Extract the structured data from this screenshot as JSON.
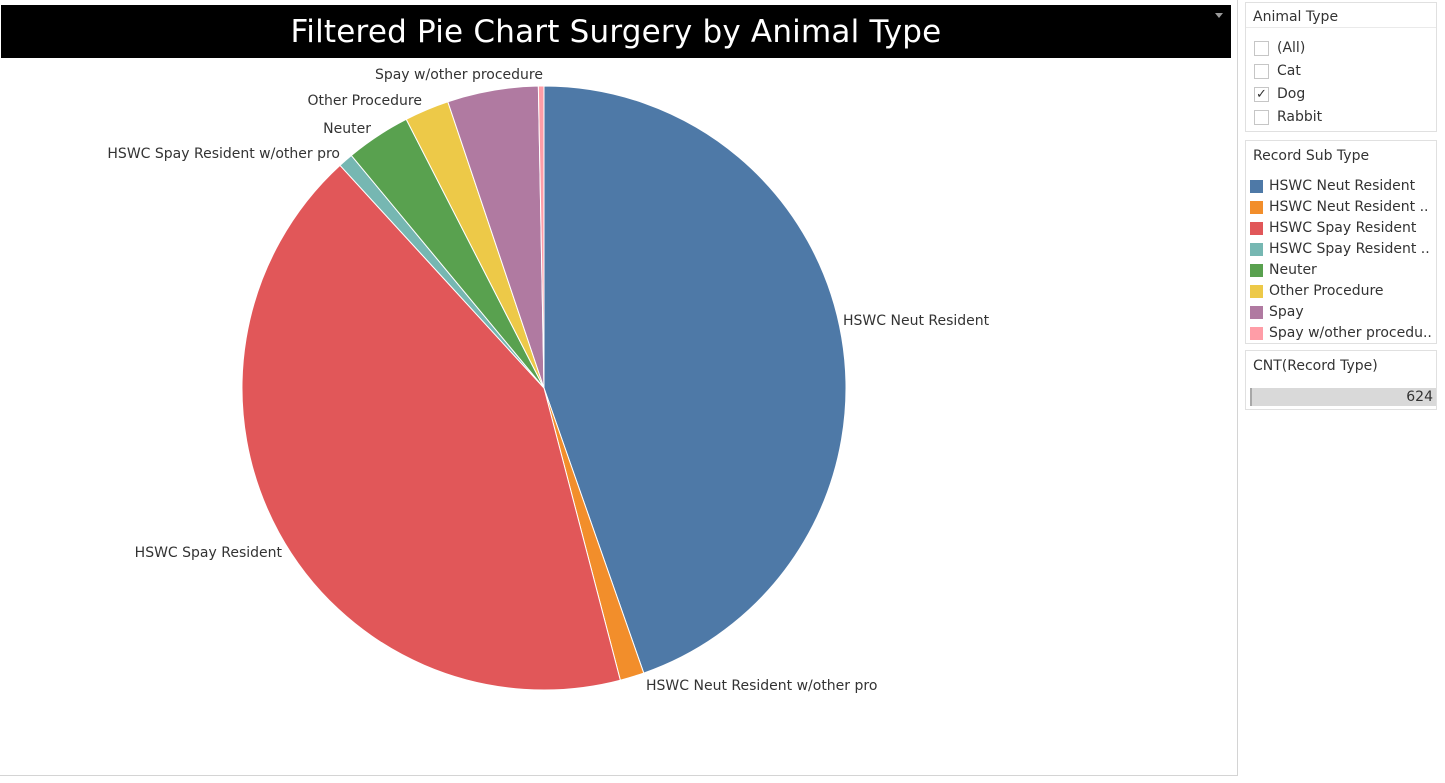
{
  "title": "Filtered Pie Chart Surgery by Animal Type",
  "chart_data": {
    "type": "pie",
    "title": "Filtered Pie Chart Surgery by Animal Type",
    "slices": [
      {
        "label": "HSWC Neut Resident",
        "value": 45.0,
        "color": "#4e79a7"
      },
      {
        "label": "HSWC Neut Resident w/other pro",
        "value": 1.3,
        "color": "#f28e2b"
      },
      {
        "label": "HSWC Spay Resident",
        "value": 42.6,
        "color": "#e15759"
      },
      {
        "label": "HSWC Spay Resident w/other pro",
        "value": 0.8,
        "color": "#76b7b2"
      },
      {
        "label": "Neuter",
        "value": 3.5,
        "color": "#59a14f"
      },
      {
        "label": "Other Procedure",
        "value": 2.4,
        "color": "#edc948"
      },
      {
        "label": "Spay",
        "value": 4.9,
        "color": "#b07aa1"
      },
      {
        "label": "Spay w/other procedure",
        "value": 0.3,
        "color": "#ff9da7"
      }
    ]
  },
  "filter": {
    "title": "Animal Type",
    "options": [
      {
        "label": "(All)",
        "checked": false
      },
      {
        "label": "Cat",
        "checked": false
      },
      {
        "label": "Dog",
        "checked": true
      },
      {
        "label": "Rabbit",
        "checked": false
      }
    ]
  },
  "legend": {
    "title": "Record Sub Type",
    "items": [
      {
        "label": "HSWC Neut Resident",
        "color": "#4e79a7"
      },
      {
        "label": "HSWC Neut Resident ..",
        "color": "#f28e2b"
      },
      {
        "label": "HSWC Spay Resident",
        "color": "#e15759"
      },
      {
        "label": "HSWC Spay Resident ..",
        "color": "#76b7b2"
      },
      {
        "label": "Neuter",
        "color": "#59a14f"
      },
      {
        "label": "Other Procedure",
        "color": "#edc948"
      },
      {
        "label": "Spay",
        "color": "#b07aa1"
      },
      {
        "label": "Spay w/other procedu..",
        "color": "#ff9da7"
      }
    ]
  },
  "size_legend": {
    "title": "CNT(Record Type)",
    "value": "624"
  }
}
